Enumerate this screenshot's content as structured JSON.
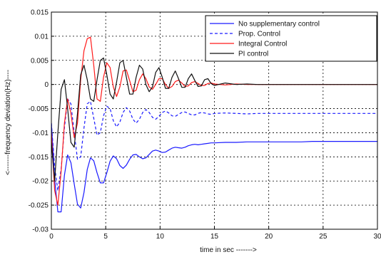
{
  "chart_data": {
    "type": "line",
    "title": "",
    "xlabel": "time in sec ------->",
    "ylabel": "<-------frequency deviation(Hz)----",
    "xlim": [
      0,
      30
    ],
    "ylim": [
      -0.03,
      0.015
    ],
    "x_ticks": [
      "0",
      "5",
      "10",
      "15",
      "20",
      "25",
      "30"
    ],
    "y_ticks": [
      "-0.03",
      "-0.025",
      "-0.02",
      "-0.015",
      "-0.01",
      "-0.005",
      "0",
      "0.005",
      "0.01",
      "0.015"
    ],
    "grid": true,
    "legend_position": "top-right",
    "series": [
      {
        "name": "No supplementary control",
        "color": "#1a1aff",
        "style": "solid",
        "x": [
          0,
          0.3,
          0.6,
          0.9,
          1.2,
          1.5,
          1.8,
          2.1,
          2.4,
          2.7,
          3.0,
          3.3,
          3.6,
          3.9,
          4.2,
          4.5,
          4.8,
          5.1,
          5.4,
          5.7,
          6.0,
          6.3,
          6.6,
          6.9,
          7.2,
          7.5,
          7.8,
          8.1,
          8.4,
          8.7,
          9.0,
          9.3,
          9.6,
          9.9,
          10.2,
          10.5,
          10.8,
          11.1,
          11.4,
          11.7,
          12.0,
          12.3,
          12.6,
          12.9,
          13.2,
          13.5,
          13.8,
          14.1,
          14.4,
          14.7,
          15.0,
          16,
          17,
          18,
          19,
          20,
          21,
          22,
          23,
          24,
          25,
          26,
          27,
          28,
          29,
          30
        ],
        "values": [
          -0.008,
          -0.0196,
          -0.0264,
          -0.0264,
          -0.0188,
          -0.0146,
          -0.0162,
          -0.0206,
          -0.0248,
          -0.0256,
          -0.0224,
          -0.0176,
          -0.0152,
          -0.0158,
          -0.0183,
          -0.0204,
          -0.0204,
          -0.0183,
          -0.0159,
          -0.0148,
          -0.0154,
          -0.0168,
          -0.0174,
          -0.0167,
          -0.0155,
          -0.0146,
          -0.0145,
          -0.015,
          -0.0154,
          -0.0152,
          -0.0145,
          -0.0138,
          -0.0136,
          -0.0138,
          -0.0141,
          -0.014,
          -0.0136,
          -0.0132,
          -0.013,
          -0.0131,
          -0.0132,
          -0.013,
          -0.0127,
          -0.0125,
          -0.0124,
          -0.0125,
          -0.0124,
          -0.0123,
          -0.0122,
          -0.0121,
          -0.0121,
          -0.012,
          -0.012,
          -0.0119,
          -0.0119,
          -0.0119,
          -0.0119,
          -0.0119,
          -0.0119,
          -0.0118,
          -0.0118,
          -0.0118,
          -0.0118,
          -0.0118,
          -0.0118,
          -0.0118
        ]
      },
      {
        "name": "Prop. Control",
        "color": "#1a1aff",
        "style": "dashed",
        "x": [
          0,
          0.3,
          0.6,
          0.9,
          1.2,
          1.5,
          1.8,
          2.1,
          2.4,
          2.7,
          3.0,
          3.3,
          3.6,
          3.9,
          4.2,
          4.5,
          4.8,
          5.1,
          5.4,
          5.7,
          6.0,
          6.3,
          6.6,
          6.9,
          7.2,
          7.5,
          7.8,
          8.1,
          8.4,
          8.7,
          9.0,
          9.3,
          9.6,
          9.9,
          10.2,
          10.5,
          10.8,
          11.1,
          11.4,
          11.7,
          12.0,
          12.3,
          12.6,
          12.9,
          13.2,
          13.5,
          13.8,
          14.1,
          14.4,
          14.7,
          15.0,
          16,
          17,
          18,
          19,
          20,
          21,
          22,
          23,
          24,
          25,
          26,
          27,
          28,
          29,
          30
        ],
        "values": [
          -0.008,
          -0.017,
          -0.022,
          -0.0175,
          -0.009,
          -0.003,
          -0.004,
          -0.01,
          -0.0155,
          -0.015,
          -0.009,
          -0.004,
          -0.0035,
          -0.007,
          -0.0105,
          -0.01,
          -0.0065,
          -0.0045,
          -0.005,
          -0.0075,
          -0.0088,
          -0.0078,
          -0.0058,
          -0.0048,
          -0.0055,
          -0.0072,
          -0.008,
          -0.0072,
          -0.0058,
          -0.0052,
          -0.0058,
          -0.0068,
          -0.0072,
          -0.0066,
          -0.0058,
          -0.0055,
          -0.0059,
          -0.0065,
          -0.0066,
          -0.0062,
          -0.0058,
          -0.0057,
          -0.006,
          -0.0063,
          -0.0063,
          -0.006,
          -0.0058,
          -0.0059,
          -0.0061,
          -0.0062,
          -0.006,
          -0.0059,
          -0.006,
          -0.0061,
          -0.006,
          -0.006,
          -0.006,
          -0.006,
          -0.006,
          -0.006,
          -0.006,
          -0.006,
          -0.006,
          -0.006,
          -0.006,
          -0.006
        ]
      },
      {
        "name": "Integral Control",
        "color": "#ff1a1a",
        "style": "solid",
        "x": [
          0,
          0.3,
          0.6,
          0.9,
          1.2,
          1.5,
          1.8,
          2.1,
          2.4,
          2.7,
          3.0,
          3.3,
          3.6,
          3.9,
          4.2,
          4.5,
          4.8,
          5.1,
          5.4,
          5.7,
          6.0,
          6.3,
          6.6,
          6.9,
          7.2,
          7.5,
          7.8,
          8.1,
          8.4,
          8.7,
          9.0,
          9.3,
          9.6,
          9.9,
          10.2,
          10.5,
          10.8,
          11.1,
          11.4,
          11.7,
          12.0,
          12.3,
          12.6,
          12.9,
          13.2,
          13.5,
          13.8,
          14.1,
          14.4,
          14.7,
          15.0,
          16,
          17,
          18,
          19,
          20,
          21,
          22,
          23,
          24,
          25,
          26,
          27,
          28,
          29,
          30
        ],
        "values": [
          -0.01,
          -0.022,
          -0.025,
          -0.018,
          -0.008,
          -0.003,
          -0.006,
          -0.011,
          -0.008,
          0.001,
          0.007,
          0.0095,
          0.0098,
          0.004,
          -0.003,
          -0.0035,
          0.0015,
          0.0045,
          0.0035,
          -0.0005,
          -0.0025,
          -0.0005,
          0.0028,
          0.003,
          0.0008,
          -0.0015,
          -0.0012,
          0.001,
          0.0022,
          0.0012,
          -0.0005,
          -0.001,
          0.0,
          0.0012,
          0.0012,
          0.0,
          -0.0008,
          -0.0004,
          0.0006,
          0.0009,
          0.0003,
          -0.0004,
          -0.0003,
          0.0004,
          0.0006,
          0.0002,
          -0.0002,
          -0.0002,
          0.0002,
          0.0003,
          0.0001,
          -0.0001,
          0.0001,
          0.0,
          0.0,
          0.0,
          0.0,
          0.0,
          0.0,
          0.0,
          0.0,
          0.0,
          0.0,
          0.0,
          0.0,
          0.0
        ]
      },
      {
        "name": "PI control",
        "color": "#111111",
        "style": "solid",
        "x": [
          0,
          0.3,
          0.6,
          0.9,
          1.2,
          1.5,
          1.8,
          2.1,
          2.4,
          2.7,
          3.0,
          3.3,
          3.6,
          3.9,
          4.2,
          4.5,
          4.8,
          5.1,
          5.4,
          5.7,
          6.0,
          6.3,
          6.6,
          6.9,
          7.2,
          7.5,
          7.8,
          8.1,
          8.4,
          8.7,
          9.0,
          9.3,
          9.6,
          9.9,
          10.2,
          10.5,
          10.8,
          11.1,
          11.4,
          11.7,
          12.0,
          12.3,
          12.6,
          12.9,
          13.2,
          13.5,
          13.8,
          14.1,
          14.4,
          14.7,
          15.0,
          16,
          17,
          18,
          19,
          20,
          21,
          22,
          23,
          24,
          25,
          26,
          27,
          28,
          29,
          30
        ],
        "values": [
          -0.012,
          -0.02,
          -0.01,
          -0.001,
          0.001,
          -0.005,
          -0.012,
          -0.013,
          -0.006,
          0.002,
          0.004,
          0.001,
          -0.003,
          -0.0035,
          0.001,
          0.005,
          0.0055,
          0.002,
          -0.002,
          -0.003,
          0.0005,
          0.0045,
          0.005,
          0.0015,
          -0.002,
          -0.002,
          0.0015,
          0.004,
          0.0032,
          0.0,
          -0.0015,
          -0.0005,
          0.0025,
          0.0035,
          0.0015,
          -0.0008,
          -0.0008,
          0.0015,
          0.0028,
          0.0012,
          -0.0006,
          -0.0006,
          0.0012,
          0.0022,
          0.0008,
          -0.0004,
          -0.0003,
          0.001,
          0.0012,
          0.0002,
          -0.0002,
          0.0003,
          0.0,
          0.0001,
          0.0,
          0.0,
          0.0,
          0.0,
          0.0,
          0.0,
          0.0,
          0.0,
          0.0,
          0.0,
          0.0,
          0.0
        ]
      }
    ]
  }
}
